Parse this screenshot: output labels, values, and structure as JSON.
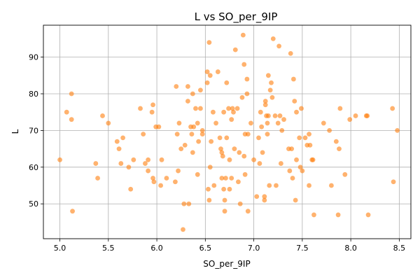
{
  "chart_data": {
    "type": "scatter",
    "title": "L vs SO_per_9IP",
    "xlabel": "SO_per_9IP",
    "ylabel": "L",
    "xlim": [
      4.83,
      8.62
    ],
    "ylim": [
      40.5,
      98.7
    ],
    "xticks": [
      5.0,
      5.5,
      6.0,
      6.5,
      7.0,
      7.5,
      8.0,
      8.5
    ],
    "xtick_labels": [
      "5.0",
      "5.5",
      "6.0",
      "6.5",
      "7.0",
      "7.5",
      "8.0",
      "8.5"
    ],
    "yticks": [
      50,
      60,
      70,
      80,
      90
    ],
    "ytick_labels": [
      "50",
      "60",
      "70",
      "80",
      "90"
    ],
    "grid": true,
    "point_color": "#ff7f0e",
    "point_alpha": 0.6,
    "points": [
      [
        5.0,
        62
      ],
      [
        5.07,
        75
      ],
      [
        5.12,
        80
      ],
      [
        5.12,
        73
      ],
      [
        5.13,
        48
      ],
      [
        5.37,
        61
      ],
      [
        5.39,
        57
      ],
      [
        5.44,
        74
      ],
      [
        5.5,
        72
      ],
      [
        5.59,
        67
      ],
      [
        5.61,
        65
      ],
      [
        5.63,
        61
      ],
      [
        5.65,
        68
      ],
      [
        5.71,
        60
      ],
      [
        5.73,
        54
      ],
      [
        5.76,
        62
      ],
      [
        5.83,
        76
      ],
      [
        5.86,
        69
      ],
      [
        5.88,
        61
      ],
      [
        5.91,
        62
      ],
      [
        5.91,
        59
      ],
      [
        5.95,
        75
      ],
      [
        5.96,
        77
      ],
      [
        5.96,
        57
      ],
      [
        5.97,
        56
      ],
      [
        5.99,
        71
      ],
      [
        6.02,
        71
      ],
      [
        6.04,
        55
      ],
      [
        6.05,
        62
      ],
      [
        6.1,
        57
      ],
      [
        6.19,
        56
      ],
      [
        6.2,
        82
      ],
      [
        6.21,
        69
      ],
      [
        6.22,
        59
      ],
      [
        6.23,
        72
      ],
      [
        6.25,
        65
      ],
      [
        6.27,
        43
      ],
      [
        6.28,
        50
      ],
      [
        6.29,
        66
      ],
      [
        6.32,
        78
      ],
      [
        6.32,
        82
      ],
      [
        6.33,
        50
      ],
      [
        6.35,
        71
      ],
      [
        6.36,
        69
      ],
      [
        6.37,
        80
      ],
      [
        6.37,
        64
      ],
      [
        6.38,
        71
      ],
      [
        6.4,
        76
      ],
      [
        6.42,
        72
      ],
      [
        6.42,
        58
      ],
      [
        6.43,
        67
      ],
      [
        6.45,
        76
      ],
      [
        6.45,
        81
      ],
      [
        6.47,
        69
      ],
      [
        6.47,
        70
      ],
      [
        6.52,
        83
      ],
      [
        6.52,
        86
      ],
      [
        6.53,
        54
      ],
      [
        6.54,
        94
      ],
      [
        6.54,
        51
      ],
      [
        6.55,
        60
      ],
      [
        6.55,
        85
      ],
      [
        6.56,
        67
      ],
      [
        6.58,
        75
      ],
      [
        6.59,
        55
      ],
      [
        6.61,
        72
      ],
      [
        6.63,
        86
      ],
      [
        6.65,
        68
      ],
      [
        6.66,
        65
      ],
      [
        6.67,
        64
      ],
      [
        6.67,
        57
      ],
      [
        6.68,
        63
      ],
      [
        6.69,
        54
      ],
      [
        6.69,
        75
      ],
      [
        6.7,
        48
      ],
      [
        6.7,
        51
      ],
      [
        6.71,
        57
      ],
      [
        6.72,
        83
      ],
      [
        6.72,
        68
      ],
      [
        6.74,
        76
      ],
      [
        6.75,
        62
      ],
      [
        6.75,
        54
      ],
      [
        6.77,
        73
      ],
      [
        6.77,
        57
      ],
      [
        6.78,
        76
      ],
      [
        6.79,
        75
      ],
      [
        6.8,
        65
      ],
      [
        6.81,
        92
      ],
      [
        6.83,
        76
      ],
      [
        6.84,
        56
      ],
      [
        6.85,
        64
      ],
      [
        6.86,
        50
      ],
      [
        6.88,
        79
      ],
      [
        6.89,
        96
      ],
      [
        6.9,
        88
      ],
      [
        6.9,
        63
      ],
      [
        6.91,
        58
      ],
      [
        6.91,
        69
      ],
      [
        6.93,
        84
      ],
      [
        6.93,
        80
      ],
      [
        6.94,
        48
      ],
      [
        6.94,
        69
      ],
      [
        6.97,
        72
      ],
      [
        7.0,
        62
      ],
      [
        7.03,
        52
      ],
      [
        7.05,
        68
      ],
      [
        7.06,
        61
      ],
      [
        7.07,
        75
      ],
      [
        7.08,
        71
      ],
      [
        7.09,
        64
      ],
      [
        7.11,
        51
      ],
      [
        7.11,
        52
      ],
      [
        7.12,
        78
      ],
      [
        7.12,
        77
      ],
      [
        7.13,
        74
      ],
      [
        7.14,
        69
      ],
      [
        7.14,
        72
      ],
      [
        7.15,
        74
      ],
      [
        7.15,
        85
      ],
      [
        7.16,
        55
      ],
      [
        7.17,
        81
      ],
      [
        7.18,
        83
      ],
      [
        7.19,
        79
      ],
      [
        7.2,
        95
      ],
      [
        7.22,
        74
      ],
      [
        7.23,
        55
      ],
      [
        7.25,
        72
      ],
      [
        7.26,
        93
      ],
      [
        7.27,
        74
      ],
      [
        7.28,
        61
      ],
      [
        7.29,
        70
      ],
      [
        7.31,
        73
      ],
      [
        7.36,
        65
      ],
      [
        7.37,
        59
      ],
      [
        7.38,
        91
      ],
      [
        7.39,
        65
      ],
      [
        7.4,
        57
      ],
      [
        7.41,
        84
      ],
      [
        7.42,
        78
      ],
      [
        7.43,
        51
      ],
      [
        7.44,
        62
      ],
      [
        7.44,
        75
      ],
      [
        7.47,
        68
      ],
      [
        7.48,
        60
      ],
      [
        7.49,
        76
      ],
      [
        7.5,
        59
      ],
      [
        7.53,
        68
      ],
      [
        7.55,
        66
      ],
      [
        7.57,
        69
      ],
      [
        7.57,
        55
      ],
      [
        7.58,
        66
      ],
      [
        7.6,
        62
      ],
      [
        7.61,
        62
      ],
      [
        7.62,
        47
      ],
      [
        7.72,
        72
      ],
      [
        7.78,
        70
      ],
      [
        7.8,
        55
      ],
      [
        7.85,
        67
      ],
      [
        7.87,
        47
      ],
      [
        7.88,
        65
      ],
      [
        7.89,
        76
      ],
      [
        7.94,
        58
      ],
      [
        7.99,
        73
      ],
      [
        8.05,
        74
      ],
      [
        8.16,
        74
      ],
      [
        8.17,
        74
      ],
      [
        8.18,
        47
      ],
      [
        8.43,
        76
      ],
      [
        8.44,
        56
      ],
      [
        8.48,
        70
      ]
    ]
  }
}
